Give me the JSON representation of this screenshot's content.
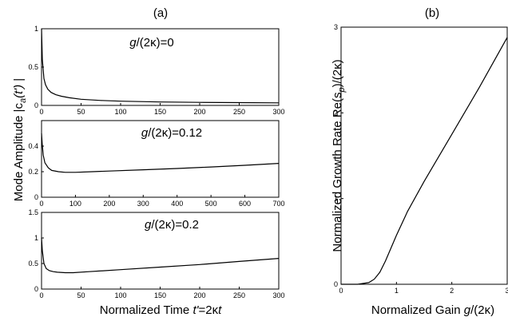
{
  "panel_a": {
    "letter": "(a)",
    "ylabel": "Mode Amplitude |c",
    "ylabel_sub": "a",
    "ylabel_arg": "(t')",
    "ylabel_end": " |",
    "xlabel": "Normalized Time ",
    "xlabel_var": "t'",
    "xlabel_eq": "=2κ",
    "xlabel_t": "t"
  },
  "panel_b": {
    "letter": "(b)",
    "ylabel": "Normalized Growth Rate Re(s",
    "ylabel_sub": "p",
    "ylabel_end": ")/(2κ)",
    "xlabel": "Normalized Gain ",
    "xlabel_var": "g",
    "xlabel_end": "/(2κ)"
  },
  "chart_data": [
    {
      "type": "line",
      "panel": "a-top",
      "annotation_var": "g",
      "annotation": "/(2κ)=0",
      "xlim": [
        0,
        300
      ],
      "ylim": [
        0,
        1
      ],
      "xticks": [
        "0",
        "50",
        "100",
        "150",
        "200",
        "250",
        "300"
      ],
      "yticks": [
        "0",
        "0.5",
        "1"
      ],
      "series": [
        {
          "x": [
            0,
            1,
            3,
            5,
            8,
            12,
            18,
            25,
            35,
            50,
            75,
            100,
            150,
            200,
            250,
            300
          ],
          "y": [
            1.0,
            0.6,
            0.35,
            0.27,
            0.21,
            0.17,
            0.14,
            0.12,
            0.1,
            0.08,
            0.065,
            0.055,
            0.045,
            0.04,
            0.036,
            0.033
          ]
        }
      ]
    },
    {
      "type": "line",
      "panel": "a-mid",
      "annotation_var": "g",
      "annotation": "/(2κ)=0.12",
      "xlim": [
        0,
        700
      ],
      "ylim": [
        0,
        0.6
      ],
      "xticks": [
        "0",
        "100",
        "200",
        "300",
        "400",
        "500",
        "600",
        "700"
      ],
      "yticks": [
        "0",
        "0.2",
        "0.4"
      ],
      "series": [
        {
          "x": [
            0,
            2,
            5,
            10,
            20,
            30,
            50,
            70,
            100,
            150,
            200,
            300,
            400,
            500,
            600,
            700
          ],
          "y": [
            0.5,
            0.42,
            0.33,
            0.27,
            0.23,
            0.21,
            0.2,
            0.195,
            0.195,
            0.2,
            0.205,
            0.215,
            0.225,
            0.237,
            0.25,
            0.265
          ]
        }
      ]
    },
    {
      "type": "line",
      "panel": "a-bot",
      "annotation_var": "g",
      "annotation": "/(2κ)=0.2",
      "xlim": [
        0,
        300
      ],
      "ylim": [
        0,
        1.5
      ],
      "xticks": [
        "0",
        "50",
        "100",
        "150",
        "200",
        "250",
        "300"
      ],
      "yticks": [
        "0",
        "0.5",
        "1",
        "1.5"
      ],
      "series": [
        {
          "x": [
            0,
            1,
            3,
            6,
            10,
            15,
            20,
            30,
            40,
            60,
            100,
            150,
            200,
            250,
            300
          ],
          "y": [
            1.0,
            0.75,
            0.5,
            0.4,
            0.36,
            0.34,
            0.33,
            0.32,
            0.32,
            0.34,
            0.38,
            0.43,
            0.48,
            0.54,
            0.6
          ]
        }
      ]
    },
    {
      "type": "line",
      "panel": "b",
      "xlim": [
        0,
        3
      ],
      "ylim": [
        0,
        3
      ],
      "xticks": [
        "0",
        "1",
        "2",
        "3"
      ],
      "yticks": [
        "0",
        "1",
        "2",
        "3"
      ],
      "series": [
        {
          "x": [
            0,
            0.3,
            0.5,
            0.6,
            0.7,
            0.8,
            0.9,
            1.0,
            1.2,
            1.5,
            2.0,
            2.5,
            3.0
          ],
          "y": [
            0,
            0.0,
            0.02,
            0.06,
            0.14,
            0.27,
            0.42,
            0.57,
            0.85,
            1.2,
            1.75,
            2.3,
            2.88
          ]
        }
      ]
    }
  ]
}
